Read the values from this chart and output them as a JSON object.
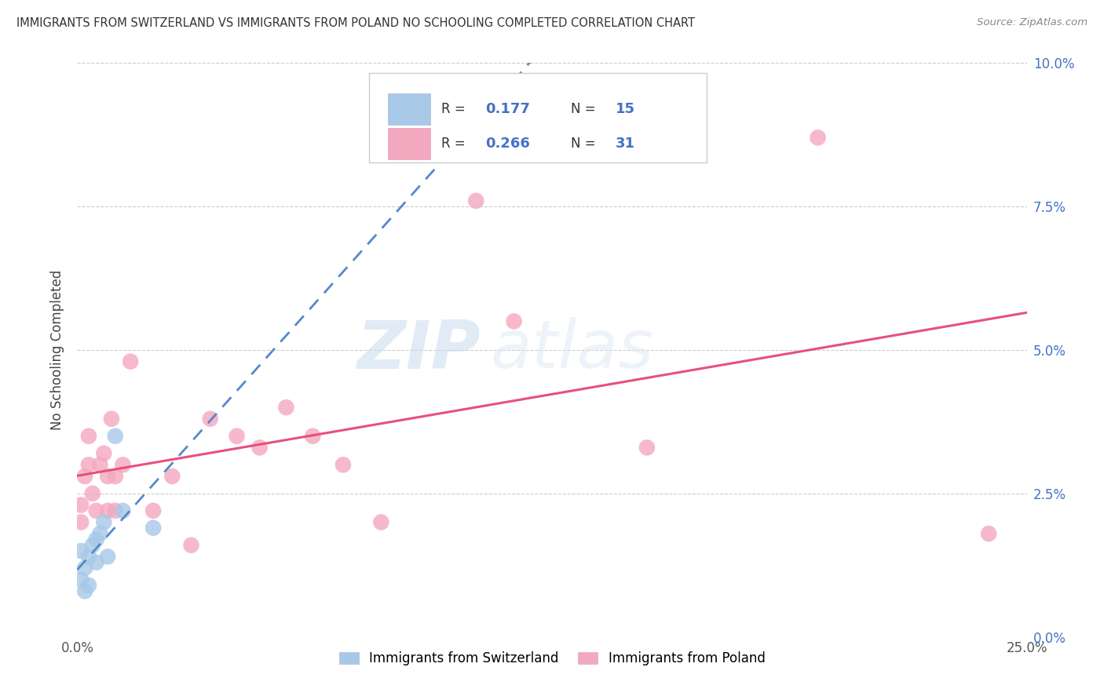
{
  "title": "IMMIGRANTS FROM SWITZERLAND VS IMMIGRANTS FROM POLAND NO SCHOOLING COMPLETED CORRELATION CHART",
  "source": "Source: ZipAtlas.com",
  "ylabel": "No Schooling Completed",
  "ytick_labels": [
    "0.0%",
    "2.5%",
    "5.0%",
    "7.5%",
    "10.0%"
  ],
  "ytick_values": [
    0.0,
    0.025,
    0.05,
    0.075,
    0.1
  ],
  "xlim": [
    0.0,
    0.25
  ],
  "ylim": [
    0.0,
    0.1
  ],
  "legend_r1": "R = 0.177",
  "legend_n1": "N = 15",
  "legend_r2": "R = 0.266",
  "legend_n2": "N = 31",
  "watermark_zip": "ZIP",
  "watermark_atlas": "atlas",
  "swiss_color": "#a8c8e8",
  "swiss_line_color": "#5588cc",
  "poland_color": "#f4a8c0",
  "poland_line_color": "#e8507a",
  "swiss_x": [
    0.001,
    0.001,
    0.002,
    0.002,
    0.003,
    0.003,
    0.004,
    0.005,
    0.005,
    0.006,
    0.007,
    0.008,
    0.01,
    0.012,
    0.02
  ],
  "swiss_y": [
    0.015,
    0.01,
    0.012,
    0.008,
    0.014,
    0.009,
    0.016,
    0.013,
    0.017,
    0.018,
    0.02,
    0.014,
    0.035,
    0.022,
    0.019
  ],
  "poland_x": [
    0.001,
    0.001,
    0.002,
    0.003,
    0.003,
    0.004,
    0.005,
    0.006,
    0.007,
    0.008,
    0.008,
    0.009,
    0.01,
    0.01,
    0.012,
    0.014,
    0.02,
    0.025,
    0.03,
    0.035,
    0.042,
    0.048,
    0.055,
    0.062,
    0.07,
    0.08,
    0.105,
    0.115,
    0.15,
    0.195,
    0.24
  ],
  "poland_y": [
    0.023,
    0.02,
    0.028,
    0.03,
    0.035,
    0.025,
    0.022,
    0.03,
    0.032,
    0.022,
    0.028,
    0.038,
    0.028,
    0.022,
    0.03,
    0.048,
    0.022,
    0.028,
    0.016,
    0.038,
    0.035,
    0.033,
    0.04,
    0.035,
    0.03,
    0.02,
    0.076,
    0.055,
    0.033,
    0.087,
    0.018
  ],
  "background_color": "#ffffff",
  "grid_color": "#cccccc"
}
